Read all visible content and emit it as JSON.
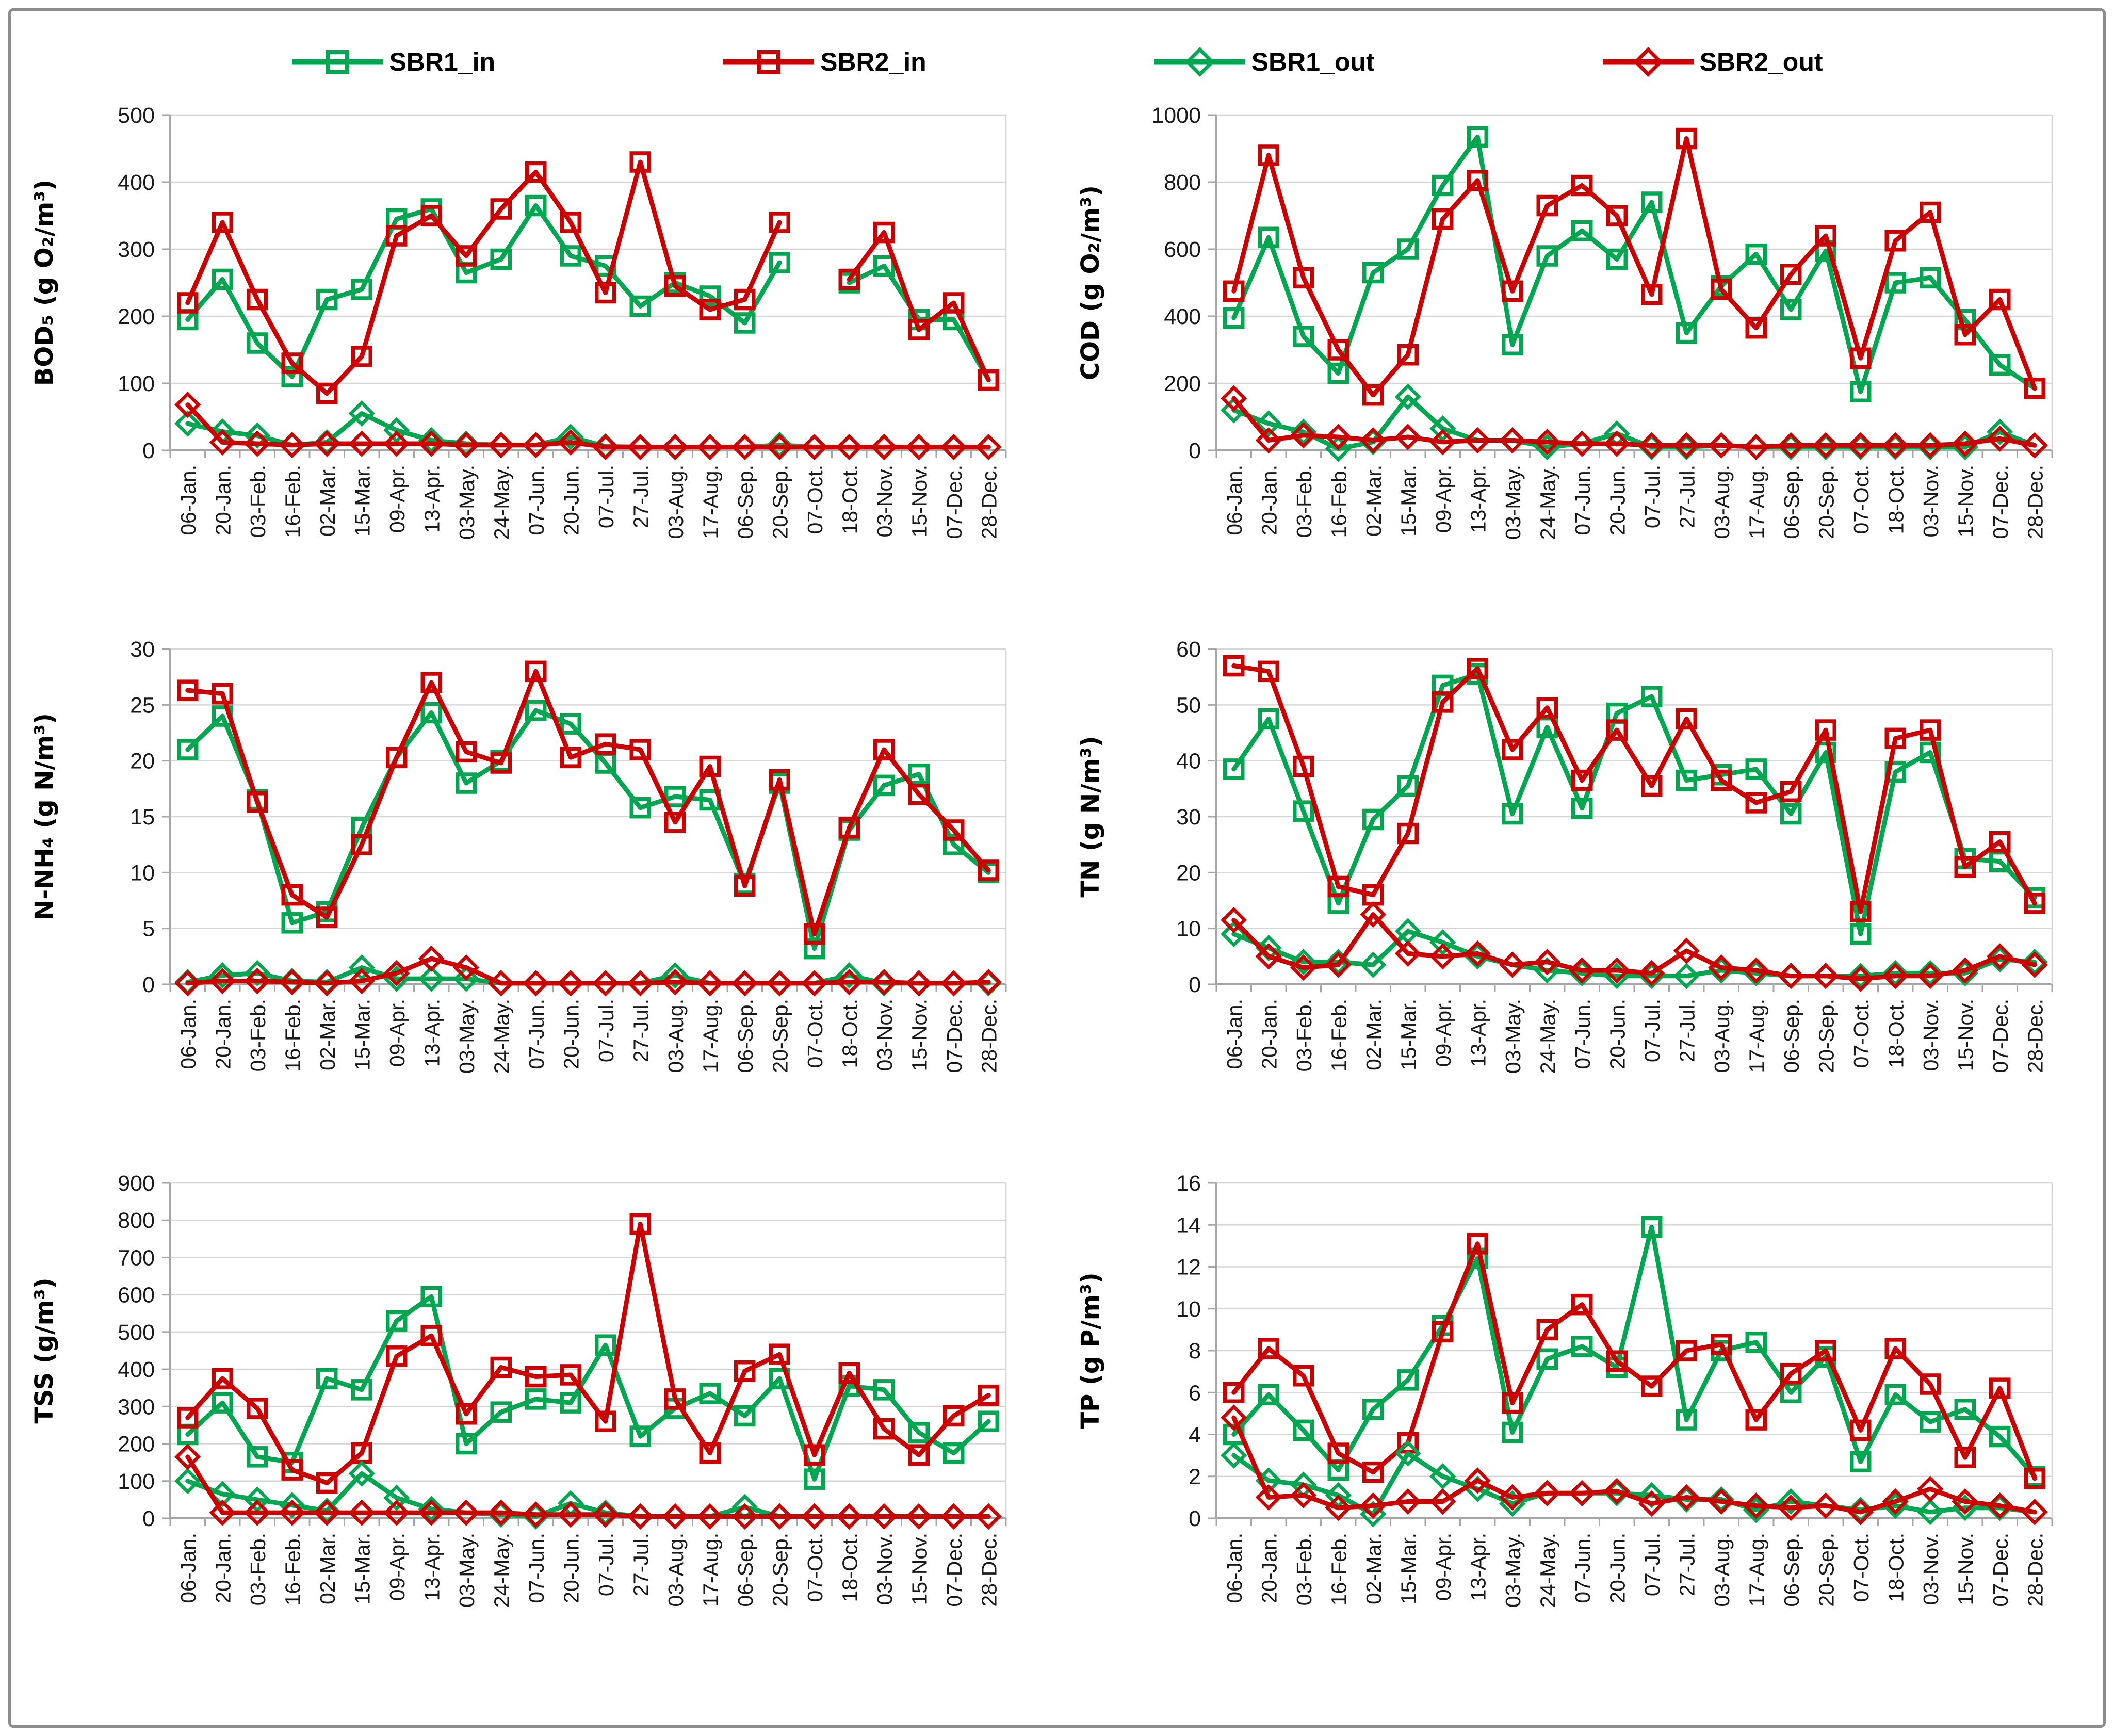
{
  "figure": {
    "background": "#FFFFFF",
    "border_color": "#8C8C8C"
  },
  "colors": {
    "sbr1_green": "#00A650",
    "sbr2_red": "#CC0000",
    "gridline": "#D6D6D6",
    "axis": "#A6A6A6",
    "tick_text": "#1A1A1A",
    "marker_fill": "none"
  },
  "legend": {
    "items": [
      {
        "label": "SBR1_in",
        "marker": "square",
        "color": "#00A650"
      },
      {
        "label": "SBR2_in",
        "marker": "square",
        "color": "#CC0000"
      },
      {
        "label": "SBR1_out",
        "marker": "diamond",
        "color": "#00A650"
      },
      {
        "label": "SBR2_out",
        "marker": "diamond",
        "color": "#CC0000"
      }
    ]
  },
  "x_labels": [
    "06-Jan.",
    "20-Jan.",
    "03-Feb.",
    "16-Feb.",
    "02-Mar.",
    "15-Mar.",
    "09-Apr.",
    "13-Apr.",
    "03-May.",
    "24-May.",
    "07-Jun.",
    "20-Jun.",
    "07-Jul.",
    "27-Jul.",
    "03-Aug.",
    "17-Aug.",
    "06-Sep.",
    "20-Sep.",
    "07-Oct.",
    "18-Oct.",
    "03-Nov.",
    "15-Nov.",
    "07-Dec.",
    "28-Dec."
  ],
  "chart_data": [
    {
      "id": "bod5",
      "type": "line",
      "ylabel": "BOD₅ (g O₂/m³)",
      "ylim": [
        0,
        500
      ],
      "ystep": 100,
      "grid": true,
      "legend_position": "top-shared",
      "series": [
        {
          "name": "SBR1_in",
          "marker": "square",
          "color": "#00A650",
          "values": [
            195,
            255,
            160,
            110,
            225,
            240,
            345,
            360,
            265,
            285,
            365,
            290,
            275,
            215,
            250,
            230,
            190,
            280,
            null,
            250,
            275,
            195,
            195,
            105
          ]
        },
        {
          "name": "SBR2_in",
          "marker": "square",
          "color": "#CC0000",
          "values": [
            220,
            340,
            225,
            130,
            85,
            140,
            320,
            350,
            290,
            360,
            415,
            340,
            235,
            430,
            245,
            210,
            225,
            340,
            null,
            255,
            325,
            180,
            220,
            105
          ]
        },
        {
          "name": "SBR1_out",
          "marker": "diamond",
          "color": "#00A650",
          "values": [
            40,
            28,
            22,
            8,
            12,
            55,
            30,
            15,
            10,
            8,
            8,
            20,
            6,
            5,
            5,
            5,
            5,
            8,
            5,
            5,
            5,
            5,
            5,
            5
          ]
        },
        {
          "name": "SBR2_out",
          "marker": "diamond",
          "color": "#CC0000",
          "values": [
            68,
            12,
            10,
            8,
            10,
            10,
            10,
            10,
            8,
            8,
            8,
            12,
            5,
            5,
            5,
            5,
            5,
            5,
            5,
            5,
            5,
            5,
            5,
            5
          ]
        }
      ]
    },
    {
      "id": "cod",
      "type": "line",
      "ylabel": "COD (g O₂/m³)",
      "ylim": [
        0,
        1000
      ],
      "ystep": 200,
      "grid": true,
      "legend_position": "top-shared",
      "series": [
        {
          "name": "SBR1_in",
          "marker": "square",
          "color": "#00A650",
          "values": [
            395,
            635,
            340,
            230,
            530,
            600,
            790,
            935,
            315,
            580,
            655,
            570,
            740,
            350,
            490,
            585,
            420,
            595,
            175,
            500,
            515,
            390,
            255,
            185
          ]
        },
        {
          "name": "SBR2_in",
          "marker": "square",
          "color": "#CC0000",
          "values": [
            475,
            880,
            515,
            300,
            165,
            285,
            690,
            805,
            475,
            730,
            790,
            700,
            465,
            930,
            480,
            365,
            525,
            640,
            275,
            625,
            710,
            345,
            450,
            185
          ]
        },
        {
          "name": "SBR1_out",
          "marker": "diamond",
          "color": "#00A650",
          "values": [
            120,
            80,
            55,
            5,
            25,
            160,
            65,
            30,
            30,
            10,
            20,
            50,
            10,
            10,
            15,
            10,
            10,
            10,
            10,
            10,
            10,
            10,
            55,
            15
          ]
        },
        {
          "name": "SBR2_out",
          "marker": "diamond",
          "color": "#CC0000",
          "values": [
            155,
            30,
            45,
            40,
            30,
            40,
            25,
            30,
            30,
            25,
            20,
            20,
            15,
            15,
            15,
            10,
            15,
            15,
            15,
            15,
            15,
            20,
            35,
            15
          ]
        }
      ]
    },
    {
      "id": "nnh4",
      "type": "line",
      "ylabel": "N-NH₄ (g N/m³)",
      "ylim": [
        0,
        30
      ],
      "ystep": 5,
      "grid": true,
      "legend_position": "top-shared",
      "series": [
        {
          "name": "SBR1_in",
          "marker": "square",
          "color": "#00A650",
          "values": [
            21,
            24,
            16.5,
            5.5,
            6.5,
            14,
            20.3,
            24.3,
            18,
            20,
            24.5,
            23.3,
            19.8,
            15.8,
            16.8,
            16.5,
            9,
            18,
            3.2,
            13.8,
            17.8,
            18.8,
            12.5,
            10
          ]
        },
        {
          "name": "SBR2_in",
          "marker": "square",
          "color": "#CC0000",
          "values": [
            26.3,
            26,
            16.3,
            8,
            6,
            12.5,
            20.3,
            27,
            20.8,
            19.8,
            28,
            20.3,
            21.5,
            21,
            14.5,
            19.5,
            8.8,
            18.3,
            4.5,
            14,
            21,
            17,
            13.8,
            10.2
          ]
        },
        {
          "name": "SBR1_out",
          "marker": "diamond",
          "color": "#00A650",
          "values": [
            0.2,
            0.8,
            1,
            0.3,
            0.2,
            1.5,
            0.5,
            0.5,
            0.5,
            0.1,
            0.1,
            0.1,
            0.1,
            0.1,
            0.8,
            0.1,
            0.1,
            0.1,
            0.1,
            0.8,
            0.1,
            0.1,
            0.1,
            0.1
          ]
        },
        {
          "name": "SBR2_out",
          "marker": "diamond",
          "color": "#CC0000",
          "values": [
            0.1,
            0.3,
            0.3,
            0.2,
            0.1,
            0.3,
            1,
            2.3,
            1.5,
            0.1,
            0.1,
            0.1,
            0.1,
            0.1,
            0.2,
            0.1,
            0.1,
            0.1,
            0.1,
            0.2,
            0.2,
            0.1,
            0.1,
            0.2
          ]
        }
      ]
    },
    {
      "id": "tn",
      "type": "line",
      "ylabel": "TN (g N/m³)",
      "ylim": [
        0,
        60
      ],
      "ystep": 10,
      "grid": true,
      "legend_position": "top-shared",
      "series": [
        {
          "name": "SBR1_in",
          "marker": "square",
          "color": "#00A650",
          "values": [
            38.5,
            47.5,
            31,
            14.5,
            29.5,
            35.5,
            53.5,
            55.5,
            30.5,
            46,
            31.5,
            48.5,
            51.5,
            36.5,
            37.5,
            38.5,
            30.5,
            41.5,
            9,
            38,
            41.5,
            22.5,
            22,
            15.5
          ]
        },
        {
          "name": "SBR2_in",
          "marker": "square",
          "color": "#CC0000",
          "values": [
            57,
            56,
            39,
            17.5,
            16,
            27,
            50.5,
            56.5,
            42,
            49.5,
            36.5,
            45.5,
            35.5,
            47.5,
            36.5,
            32.5,
            34.5,
            45.5,
            13,
            44,
            45.5,
            21,
            25.5,
            14.5
          ]
        },
        {
          "name": "SBR1_out",
          "marker": "diamond",
          "color": "#00A650",
          "values": [
            9,
            6.5,
            4,
            4,
            3.5,
            9.5,
            7.5,
            5,
            3.5,
            2.5,
            2,
            1.5,
            1.5,
            1.5,
            2.5,
            2,
            1.5,
            1.5,
            1.5,
            2,
            2,
            2,
            4.5,
            4
          ]
        },
        {
          "name": "SBR2_out",
          "marker": "diamond",
          "color": "#CC0000",
          "values": [
            11.5,
            5,
            3,
            3.5,
            12.5,
            5.5,
            5,
            5.5,
            3.5,
            4,
            2.5,
            2.5,
            2,
            6,
            3,
            2.5,
            1.5,
            1.5,
            1,
            1.5,
            1.5,
            2.5,
            5,
            3.5
          ]
        }
      ]
    },
    {
      "id": "tss",
      "type": "line",
      "ylabel": "TSS (g/m³)",
      "ylim": [
        0,
        900
      ],
      "ystep": 100,
      "grid": true,
      "legend_position": "top-shared",
      "series": [
        {
          "name": "SBR1_in",
          "marker": "square",
          "color": "#00A650",
          "values": [
            225,
            310,
            165,
            150,
            375,
            345,
            530,
            595,
            200,
            285,
            320,
            310,
            465,
            220,
            295,
            335,
            275,
            375,
            105,
            355,
            345,
            230,
            175,
            260
          ]
        },
        {
          "name": "SBR2_in",
          "marker": "square",
          "color": "#CC0000",
          "values": [
            270,
            375,
            295,
            130,
            95,
            175,
            435,
            490,
            280,
            405,
            380,
            385,
            260,
            790,
            320,
            175,
            395,
            440,
            170,
            390,
            240,
            170,
            275,
            330
          ]
        },
        {
          "name": "SBR1_out",
          "marker": "diamond",
          "color": "#00A650",
          "values": [
            100,
            65,
            50,
            35,
            20,
            120,
            55,
            25,
            15,
            10,
            5,
            40,
            15,
            5,
            5,
            5,
            30,
            5,
            5,
            5,
            5,
            5,
            5,
            5
          ]
        },
        {
          "name": "SBR2_out",
          "marker": "diamond",
          "color": "#CC0000",
          "values": [
            165,
            15,
            15,
            15,
            15,
            15,
            15,
            15,
            15,
            15,
            10,
            10,
            10,
            5,
            5,
            5,
            5,
            5,
            5,
            5,
            5,
            5,
            5,
            5
          ]
        }
      ]
    },
    {
      "id": "tp",
      "type": "line",
      "ylabel": "TP (g P/m³)",
      "ylim": [
        0,
        16
      ],
      "ystep": 2,
      "grid": true,
      "legend_position": "top-shared",
      "series": [
        {
          "name": "SBR1_in",
          "marker": "square",
          "color": "#00A650",
          "values": [
            4.0,
            5.9,
            4.2,
            2.3,
            5.2,
            6.6,
            9.2,
            12.4,
            4.1,
            7.6,
            8.2,
            7.2,
            13.9,
            4.7,
            8.0,
            8.4,
            6.0,
            7.7,
            2.7,
            5.9,
            4.6,
            5.2,
            3.9,
            2.0
          ]
        },
        {
          "name": "SBR2_in",
          "marker": "square",
          "color": "#CC0000",
          "values": [
            6.0,
            8.1,
            6.8,
            3.1,
            2.2,
            3.6,
            8.9,
            13.1,
            5.5,
            9.0,
            10.2,
            7.5,
            6.3,
            8.0,
            8.3,
            4.7,
            6.9,
            8.0,
            4.2,
            8.1,
            6.4,
            2.9,
            6.2,
            1.9
          ]
        },
        {
          "name": "SBR1_out",
          "marker": "diamond",
          "color": "#00A650",
          "values": [
            3.0,
            1.8,
            1.6,
            1.1,
            0.2,
            3.1,
            2.0,
            1.4,
            0.7,
            1.2,
            1.2,
            1.2,
            1.1,
            0.9,
            0.9,
            0.4,
            0.8,
            0.6,
            0.4,
            0.6,
            0.3,
            0.5,
            0.5,
            0.3
          ]
        },
        {
          "name": "SBR2_out",
          "marker": "diamond",
          "color": "#CC0000",
          "values": [
            4.8,
            1.0,
            1.1,
            0.5,
            0.6,
            0.8,
            0.8,
            1.8,
            1.0,
            1.2,
            1.2,
            1.3,
            0.7,
            1.0,
            0.8,
            0.6,
            0.5,
            0.6,
            0.3,
            0.8,
            1.4,
            0.8,
            0.6,
            0.3
          ]
        }
      ]
    }
  ]
}
